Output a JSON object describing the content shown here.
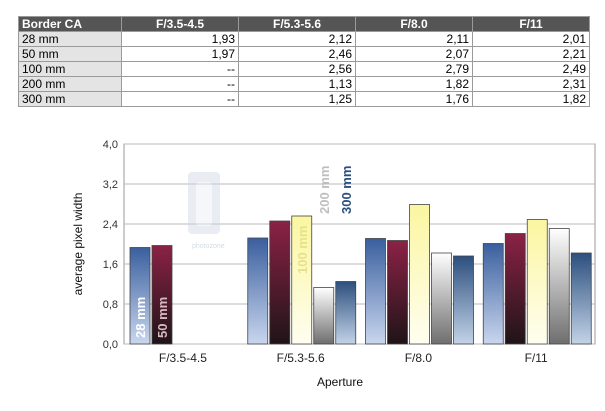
{
  "table": {
    "header": [
      "Border CA",
      "F/3.5-4.5",
      "F/5.3-5.6",
      "F/8.0",
      "F/11"
    ],
    "rows": [
      [
        "28 mm",
        "1,93",
        "2,12",
        "2,11",
        "2,01"
      ],
      [
        "50 mm",
        "1,97",
        "2,46",
        "2,07",
        "2,21"
      ],
      [
        "100 mm",
        "--",
        "2,56",
        "2,79",
        "2,49"
      ],
      [
        "200 mm",
        "--",
        "1,13",
        "1,82",
        "2,31"
      ],
      [
        "300 mm",
        "--",
        "1,25",
        "1,76",
        "1,82"
      ]
    ]
  },
  "watermark": {
    "text": "photozone"
  },
  "chart_data": {
    "type": "bar",
    "title": "",
    "xlabel": "Aperture",
    "ylabel": "average pixel width",
    "ylim": [
      0,
      4.0
    ],
    "yticks": [
      "0,0",
      "0,8",
      "1,6",
      "2,4",
      "3,2",
      "4,0"
    ],
    "ytick_values": [
      0,
      0.8,
      1.6,
      2.4,
      3.2,
      4.0
    ],
    "grid": true,
    "categories": [
      "F/3.5-4.5",
      "F/5.3-5.6",
      "F/8.0",
      "F/11"
    ],
    "series": [
      {
        "name": "28 mm",
        "values": [
          1.93,
          2.12,
          2.11,
          2.01
        ],
        "color": "#3a5f9e"
      },
      {
        "name": "50 mm",
        "values": [
          1.97,
          2.46,
          2.07,
          2.21
        ],
        "color": "#8b2246"
      },
      {
        "name": "100 mm",
        "values": [
          null,
          2.56,
          2.79,
          2.49
        ],
        "color": "#fbf6a0"
      },
      {
        "name": "200 mm",
        "values": [
          null,
          1.13,
          1.82,
          2.31
        ],
        "color": "#f4f4f4"
      },
      {
        "name": "300 mm",
        "values": [
          null,
          1.25,
          1.76,
          1.82
        ],
        "color": "#2c4f7d"
      }
    ]
  }
}
